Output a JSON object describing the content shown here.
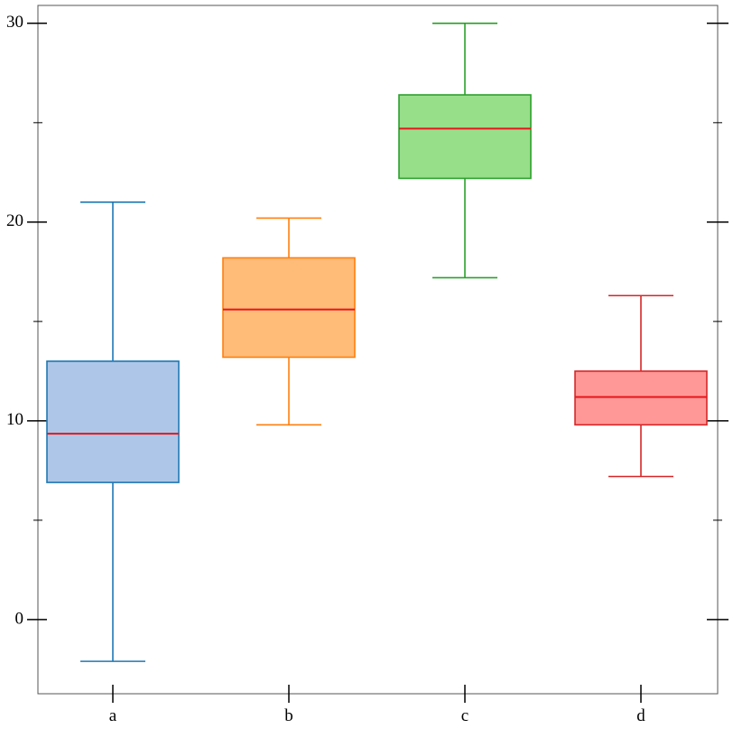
{
  "chart_data": {
    "type": "box",
    "categories": [
      "a",
      "b",
      "c",
      "d"
    ],
    "boxes": [
      {
        "whislo": -2.1,
        "q1": 6.9,
        "median": 9.35,
        "q3": 13.0,
        "whishi": 21.0,
        "fill": "#aec7e8",
        "edge": "#1f77b4"
      },
      {
        "whislo": 9.8,
        "q1": 13.2,
        "median": 15.6,
        "q3": 18.2,
        "whishi": 20.2,
        "fill": "#ffbb78",
        "edge": "#ff7f0e"
      },
      {
        "whislo": 17.2,
        "q1": 22.2,
        "median": 24.7,
        "q3": 26.4,
        "whishi": 30.0,
        "fill": "#98df8a",
        "edge": "#2ca02c"
      },
      {
        "whislo": 7.2,
        "q1": 9.8,
        "median": 11.2,
        "q3": 12.5,
        "whishi": 16.3,
        "fill": "#ff9896",
        "edge": "#d62728"
      }
    ],
    "median_color": "#e8141c",
    "ylim": [
      -3.73,
      30.9
    ],
    "yticks": [
      0,
      10,
      20,
      30
    ],
    "minor_yticks": [
      5,
      15,
      25
    ]
  }
}
